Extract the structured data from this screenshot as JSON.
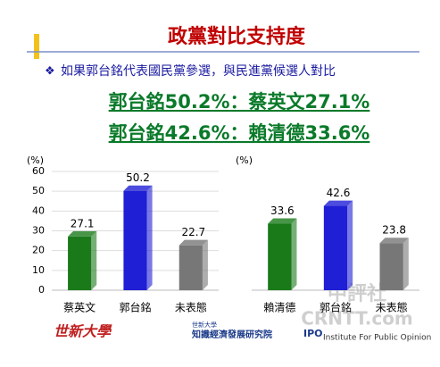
{
  "slide": {
    "title": "政黨對比支持度",
    "subtitle": "如果郭台銘代表國民黨參選，與民進黨候選人對比",
    "headlines": [
      "郭台銘50.2%：蔡英文27.1%",
      "郭台銘42.6%：賴清德33.6%"
    ],
    "logos": [
      "世新大學",
      "世新大學",
      "知識經濟發展研究院",
      "IPO",
      "Institute For Public Opinion"
    ],
    "watermark": [
      "中評社",
      "CRNTT.com"
    ]
  },
  "chart_data": [
    {
      "type": "bar",
      "y_label": "(%)",
      "categories": [
        "蔡英文",
        "郭台銘",
        "未表態"
      ],
      "values": [
        27.1,
        50.2,
        22.7
      ],
      "colors": [
        "#1a7a1a",
        "#1f1fd6",
        "#777777"
      ],
      "ylim": [
        0,
        60
      ],
      "yticks": [
        0,
        10,
        20,
        30,
        40,
        50,
        60
      ],
      "grid": true
    },
    {
      "type": "bar",
      "y_label": "(%)",
      "categories": [
        "賴清德",
        "郭台銘",
        "未表態"
      ],
      "values": [
        33.6,
        42.6,
        23.8
      ],
      "colors": [
        "#1a7a1a",
        "#1f1fd6",
        "#777777"
      ],
      "ylim": [
        0,
        60
      ],
      "grid": false
    }
  ]
}
